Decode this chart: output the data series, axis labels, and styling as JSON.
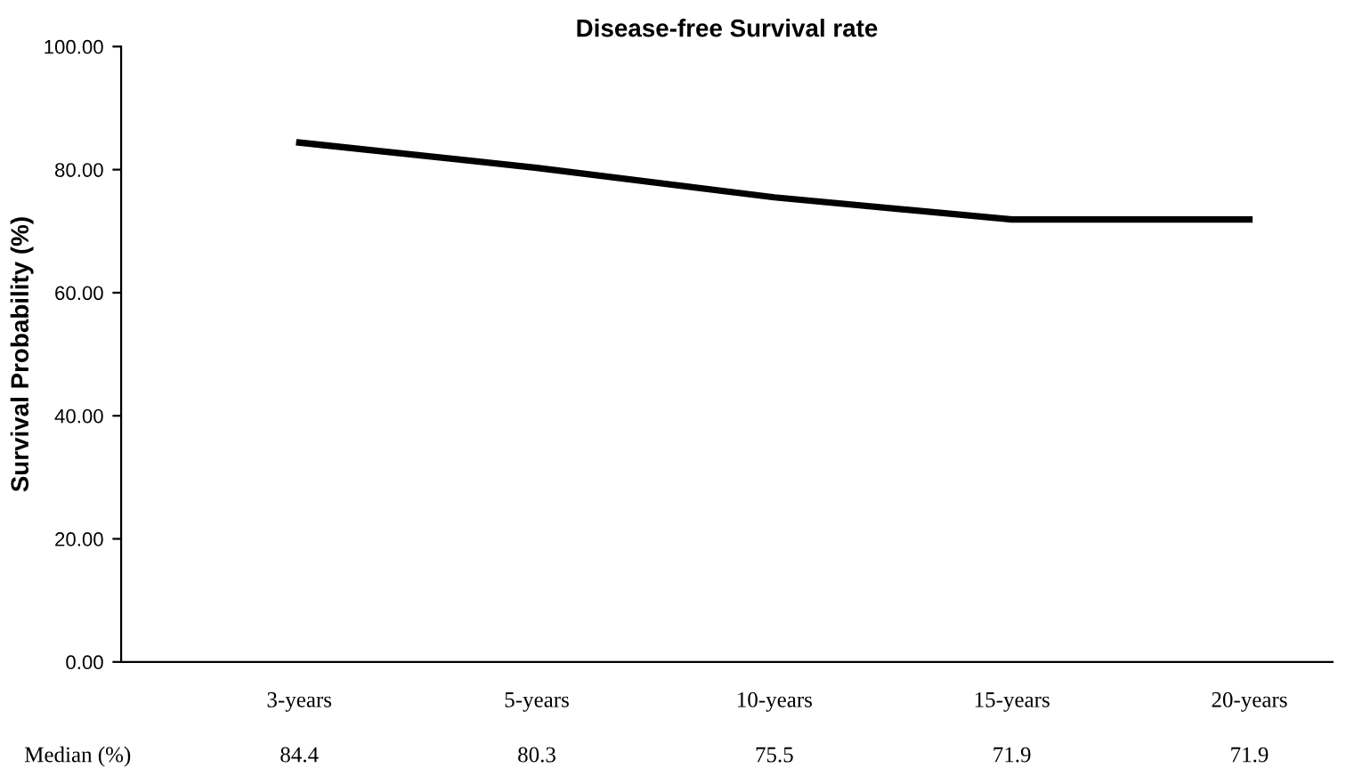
{
  "chart_data": {
    "type": "line",
    "title": "Disease-free Survival rate",
    "ylabel": "Survival Probability (%)",
    "categories": [
      "3-years",
      "5-years",
      "10-years",
      "15-years",
      "20-years"
    ],
    "series": [
      {
        "color": "#000000",
        "values": [
          84.4,
          80.3,
          75.5,
          71.9,
          71.9
        ],
        "value_labels": [
          "84.4",
          "80.3",
          "75.5",
          "71.9",
          "71.9"
        ]
      }
    ],
    "ylim": [
      0,
      100
    ],
    "yticks": [
      {
        "value": 0,
        "label": "0.00"
      },
      {
        "value": 20,
        "label": "20.00"
      },
      {
        "value": 40,
        "label": "40.00"
      },
      {
        "value": 60,
        "label": "60.00"
      },
      {
        "value": 80,
        "label": "80.00"
      },
      {
        "value": 100,
        "label": "100.00"
      }
    ],
    "annotations": [
      "Median (%)"
    ],
    "grid": false,
    "legend": false,
    "marker": "none",
    "line_style": "solid"
  }
}
